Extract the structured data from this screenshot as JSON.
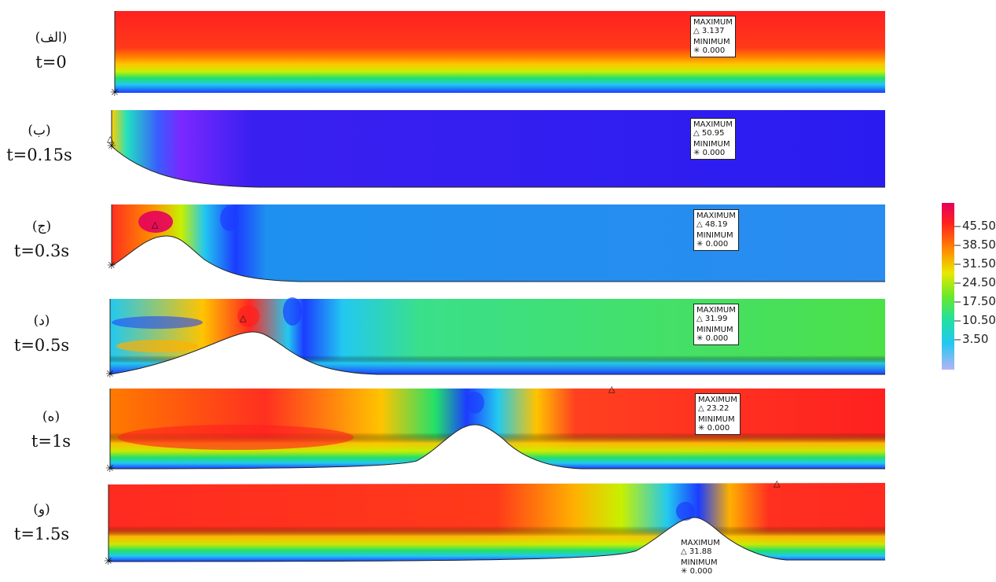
{
  "panels": [
    {
      "label_ar": "(الف)",
      "time": "t=0",
      "max_title": "MAXIMUM",
      "max_value": "3.137",
      "min_title": "MINIMUM",
      "min_value": "0.000"
    },
    {
      "label_ar": "(ب)",
      "time": "t=0.15s",
      "max_title": "MAXIMUM",
      "max_value": "50.95",
      "min_title": "MINIMUM",
      "min_value": "0.000"
    },
    {
      "label_ar": "(ج)",
      "time": "t=0.3s",
      "max_title": "MAXIMUM",
      "max_value": "48.19",
      "min_title": "MINIMUM",
      "min_value": "0.000"
    },
    {
      "label_ar": "(د)",
      "time": "t=0.5s",
      "max_title": "MAXIMUM",
      "max_value": "31.99",
      "min_title": "MINIMUM",
      "min_value": "0.000"
    },
    {
      "label_ar": "(ه)",
      "time": "t=1s",
      "max_title": "MAXIMUM",
      "max_value": "23.22",
      "min_title": "MINIMUM",
      "min_value": "0.000"
    },
    {
      "label_ar": "(و)",
      "time": "t=1.5s",
      "max_title": "MAXIMUM",
      "max_value": "31.88",
      "min_title": "MINIMUM",
      "min_value": "0.000"
    }
  ],
  "colorbar": {
    "ticks": [
      "45.50",
      "38.50",
      "31.50",
      "24.50",
      "17.50",
      "10.50",
      "3.50"
    ],
    "colors": {
      "high": "#e6005c",
      "upper": "#ff4d2e",
      "mid_high": "#ffaa00",
      "mid": "#c8f000",
      "mid_low": "#22e06a",
      "low": "#22c8f0",
      "lowest": "#a8a8f5"
    }
  },
  "markers": {
    "max_symbol": "△",
    "min_symbol": "✳"
  }
}
